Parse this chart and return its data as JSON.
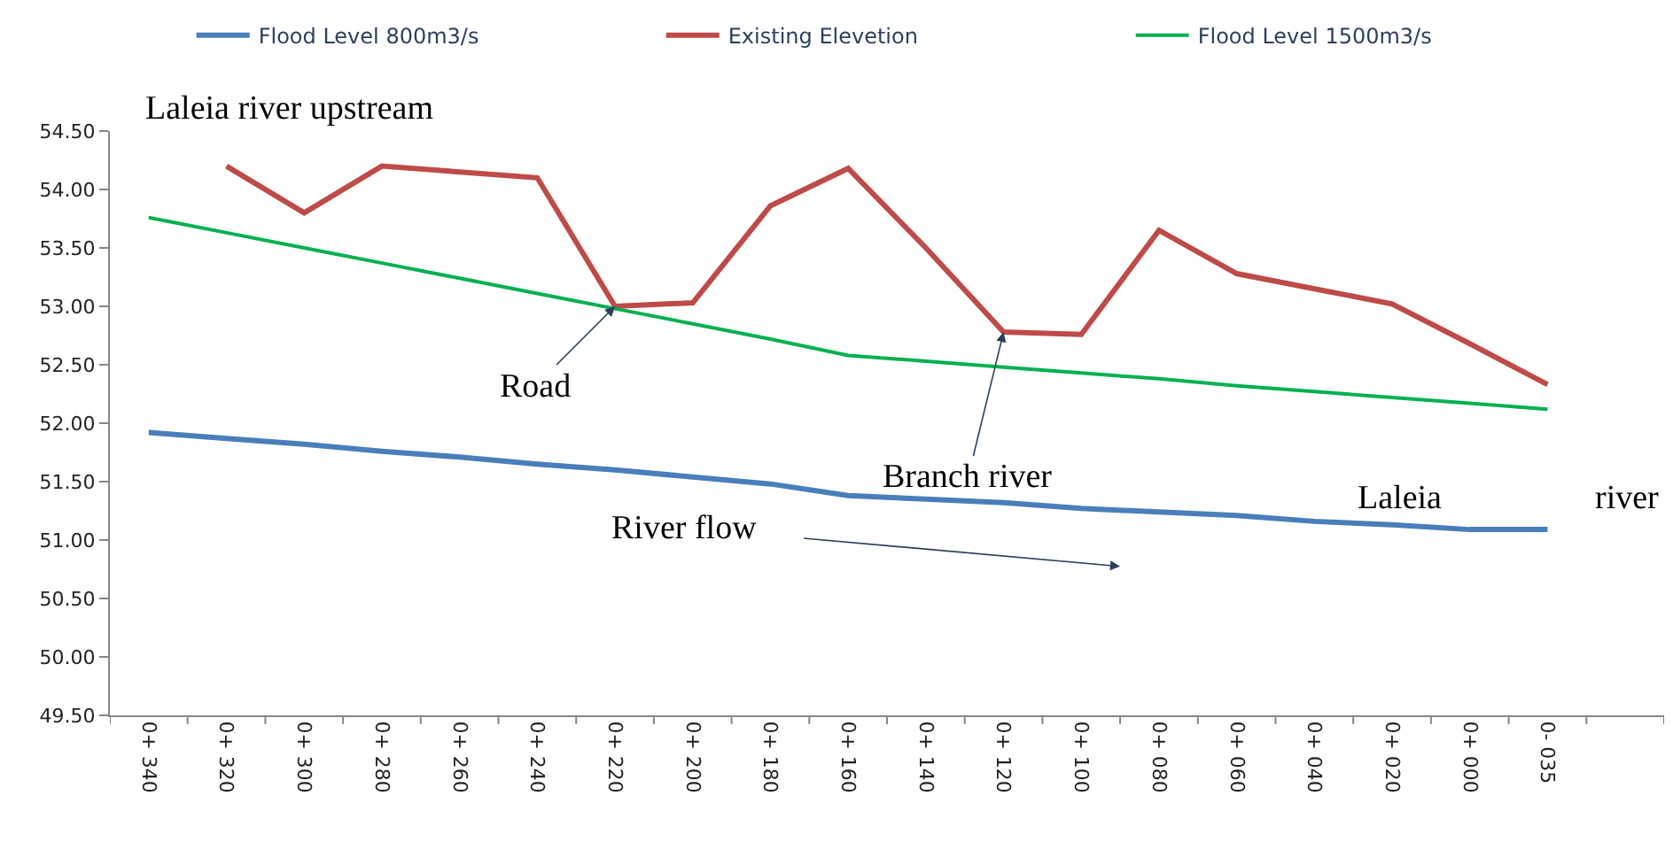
{
  "chart_data": {
    "type": "line",
    "categories": [
      "0+ 340",
      "0+ 320",
      "0+ 300",
      "0+ 280",
      "0+ 260",
      "0+ 240",
      "0+ 220",
      "0+ 200",
      "0+ 180",
      "0+ 160",
      "0+ 140",
      "0+ 120",
      "0+ 100",
      "0+ 080",
      "0+ 060",
      "0+ 040",
      "0+ 020",
      "0+ 000",
      "0- 035",
      null
    ],
    "series": [
      {
        "name": "Flood Level 800m3/s",
        "color": "#4a7ebb",
        "values": [
          51.92,
          51.87,
          51.82,
          51.76,
          51.71,
          51.65,
          51.6,
          51.54,
          51.48,
          51.38,
          51.35,
          51.32,
          51.27,
          51.24,
          51.21,
          51.16,
          51.13,
          51.09,
          51.09,
          null
        ]
      },
      {
        "name": "Existing Elevetion",
        "color": "#be4b48",
        "values": [
          null,
          54.2,
          53.8,
          54.2,
          54.15,
          54.1,
          53.0,
          53.03,
          53.86,
          54.18,
          53.5,
          52.78,
          52.76,
          53.65,
          53.28,
          53.15,
          53.02,
          52.68,
          52.33,
          null
        ]
      },
      {
        "name": "Flood Level 1500m3/s",
        "color": "#00b050",
        "values": [
          53.76,
          53.63,
          53.5,
          53.37,
          53.24,
          53.11,
          52.98,
          52.85,
          52.72,
          52.58,
          52.53,
          52.48,
          52.43,
          52.38,
          52.32,
          52.27,
          52.22,
          52.17,
          52.12,
          null
        ]
      }
    ],
    "ylim": [
      49.5,
      54.5
    ],
    "yticks": [
      {
        "value": 49.5,
        "label": "49.50"
      },
      {
        "value": 50,
        "label": "50.00"
      },
      {
        "value": 50.5,
        "label": "50.50"
      },
      {
        "value": 51,
        "label": "51.00"
      },
      {
        "value": 51.5,
        "label": "51.50"
      },
      {
        "value": 52,
        "label": "52.00"
      },
      {
        "value": 52.5,
        "label": "52.50"
      },
      {
        "value": 53,
        "label": "53.00"
      },
      {
        "value": 53.5,
        "label": "53.50"
      },
      {
        "value": 54,
        "label": "54.00"
      },
      {
        "value": 54.5,
        "label": "54.50"
      }
    ],
    "annotations": [
      "Laleia river upstream",
      {
        "text": "Road",
        "x": "0+ 220",
        "y": 53.0
      },
      {
        "text": "Branch river",
        "x": "0+ 120",
        "y": 52.78
      },
      "River flow",
      "Laleia",
      "river"
    ],
    "legend": "top",
    "marker": "none",
    "line_style": "solid"
  }
}
